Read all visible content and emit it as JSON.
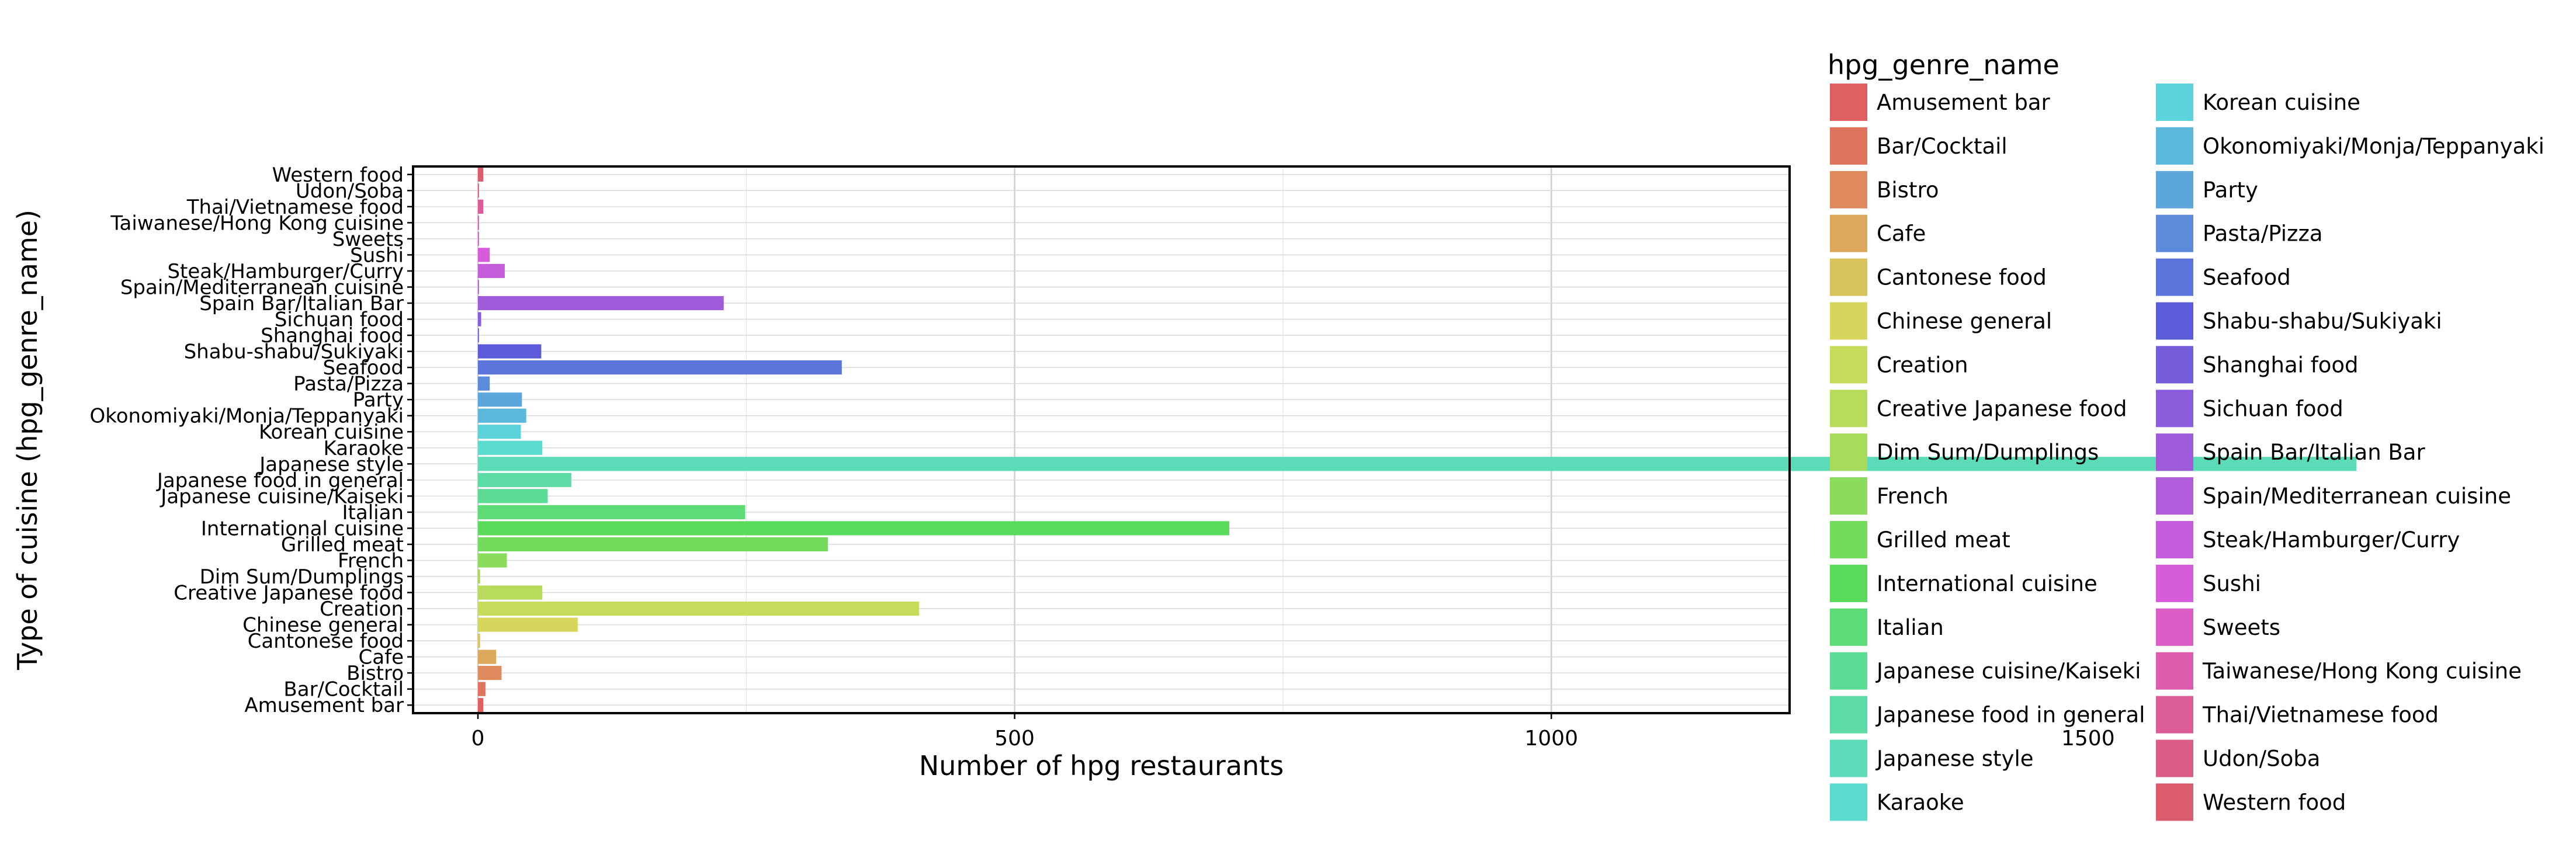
{
  "chart_data": {
    "type": "bar",
    "orientation": "horizontal",
    "title": "",
    "xlabel": "Number of hpg restaurants",
    "ylabel": "Type of cuisine (hpg_genre_name)",
    "xlim": [
      -80,
      1840
    ],
    "xticks": [
      0,
      500,
      1000,
      1500
    ],
    "grid": true,
    "legend_title": "hpg_genre_name",
    "legend_position": "right",
    "categories": [
      "Amusement bar",
      "Bar/Cocktail",
      "Bistro",
      "Cafe",
      "Cantonese food",
      "Chinese general",
      "Creation",
      "Creative Japanese food",
      "Dim Sum/Dumplings",
      "French",
      "Grilled meat",
      "International cuisine",
      "Italian",
      "Japanese cuisine/Kaiseki",
      "Japanese food in general",
      "Japanese style",
      "Karaoke",
      "Korean cuisine",
      "Okonomiyaki/Monja/Teppanyaki",
      "Party",
      "Pasta/Pizza",
      "Seafood",
      "Shabu-shabu/Sukiyaki",
      "Shanghai food",
      "Sichuan food",
      "Spain Bar/Italian Bar",
      "Spain/Mediterranean cuisine",
      "Steak/Hamburger/Curry",
      "Sushi",
      "Sweets",
      "Taiwanese/Hong Kong cuisine",
      "Thai/Vietnamese food",
      "Udon/Soba",
      "Western food"
    ],
    "values": [
      5,
      7,
      22,
      17,
      2,
      93,
      411,
      60,
      2,
      27,
      326,
      700,
      249,
      65,
      87,
      1750,
      60,
      40,
      45,
      41,
      11,
      339,
      59,
      1,
      3,
      229,
      1,
      25,
      11,
      1,
      1,
      5,
      1,
      5
    ],
    "colors": [
      "#e05f5f",
      "#df735c",
      "#de8a5c",
      "#dca85c",
      "#d8c35c",
      "#d6d65c",
      "#c8db5c",
      "#b8db5c",
      "#a6db5c",
      "#8bdb5c",
      "#74db5c",
      "#5adb5c",
      "#5cdb76",
      "#5cdb95",
      "#5cdba5",
      "#5cdbb8",
      "#5cdbcf",
      "#5cd2db",
      "#5cb8db",
      "#5ca6db",
      "#5c8bdb",
      "#5c74db",
      "#5c5cdb",
      "#745cdb",
      "#8b5cdb",
      "#9e5cdb",
      "#b05cdb",
      "#c45cdb",
      "#d75cdb",
      "#db5cc4",
      "#db5cad",
      "#db5c99",
      "#db5c86",
      "#db5c6f"
    ]
  }
}
